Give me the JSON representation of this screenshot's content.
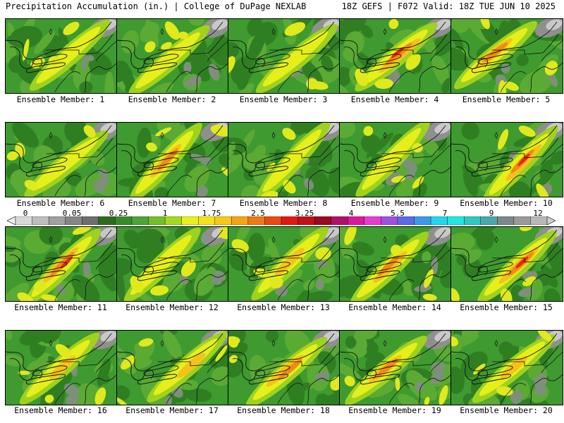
{
  "header": {
    "left": "Precipitation Accumulation (in.) | College of DuPage NEXLAB",
    "right": "18Z GEFS | F072 Valid: 18Z TUE JUN 10 2025"
  },
  "members": [
    {
      "label": "Ensemble Member: 1",
      "intensity": 0.55
    },
    {
      "label": "Ensemble Member: 2",
      "intensity": 0.45
    },
    {
      "label": "Ensemble Member: 3",
      "intensity": 0.45
    },
    {
      "label": "Ensemble Member: 4",
      "intensity": 0.95
    },
    {
      "label": "Ensemble Member: 5",
      "intensity": 0.85
    },
    {
      "label": "Ensemble Member: 6",
      "intensity": 0.5
    },
    {
      "label": "Ensemble Member: 7",
      "intensity": 0.8
    },
    {
      "label": "Ensemble Member: 8",
      "intensity": 0.45
    },
    {
      "label": "Ensemble Member: 9",
      "intensity": 0.55
    },
    {
      "label": "Ensemble Member: 10",
      "intensity": 0.9
    },
    {
      "label": "Ensemble Member: 11",
      "intensity": 0.9
    },
    {
      "label": "Ensemble Member: 12",
      "intensity": 0.55
    },
    {
      "label": "Ensemble Member: 13",
      "intensity": 0.7
    },
    {
      "label": "Ensemble Member: 14",
      "intensity": 0.8
    },
    {
      "label": "Ensemble Member: 15",
      "intensity": 0.95
    },
    {
      "label": "Ensemble Member: 16",
      "intensity": 0.6
    },
    {
      "label": "Ensemble Member: 17",
      "intensity": 0.65
    },
    {
      "label": "Ensemble Member: 18",
      "intensity": 0.85
    },
    {
      "label": "Ensemble Member: 19",
      "intensity": 0.75
    },
    {
      "label": "Ensemble Member: 20",
      "intensity": 0.6
    }
  ],
  "colorbar": {
    "tick_labels": [
      "0",
      "0.05",
      "0.25",
      "1",
      "1.75",
      "2.5",
      "3.25",
      "4",
      "5.5",
      "7",
      "9",
      "12"
    ],
    "colors": [
      "#d9d9d9",
      "#bdbdbd",
      "#a0a0a0",
      "#868686",
      "#6e6e6e",
      "#2a6e1c",
      "#3a8a2a",
      "#4ea33a",
      "#72bf2a",
      "#a6d81e",
      "#e8f21a",
      "#f5e31a",
      "#f8c817",
      "#f5a514",
      "#f07a12",
      "#e84c10",
      "#e01a10",
      "#c0101a",
      "#9a0a20",
      "#b0106a",
      "#d81a9a",
      "#e83ad0",
      "#a050e0",
      "#5a6ae8",
      "#3a9ae8",
      "#20d8f0",
      "#20e8e0",
      "#30c8c0",
      "#4aa8a8",
      "#7a8a8a",
      "#9a9a9a",
      "#b8b8b8"
    ]
  }
}
